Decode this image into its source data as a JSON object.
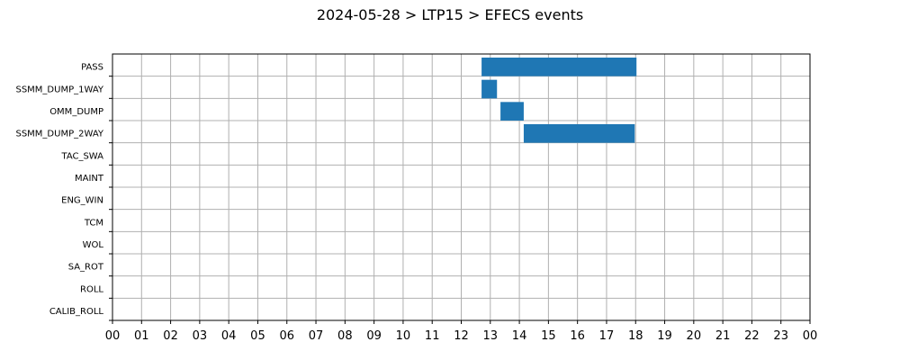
{
  "chart_data": {
    "type": "bar",
    "orientation": "horizontal-timeline",
    "title": "2024-05-28 > LTP15 > EFECS events",
    "xlabel": "",
    "ylabel": "",
    "x_unit": "hour of day",
    "xlim": [
      0,
      24
    ],
    "x_tick_labels": [
      "00",
      "01",
      "02",
      "03",
      "04",
      "05",
      "06",
      "07",
      "08",
      "09",
      "10",
      "11",
      "12",
      "13",
      "14",
      "15",
      "16",
      "17",
      "18",
      "19",
      "20",
      "21",
      "22",
      "23",
      "00"
    ],
    "categories": [
      "PASS",
      "SSMM_DUMP_1WAY",
      "OMM_DUMP",
      "SSMM_DUMP_2WAY",
      "TAC_SWA",
      "MAINT",
      "ENG_WIN",
      "TCM",
      "WOL",
      "SA_ROT",
      "ROLL",
      "CALIB_ROLL"
    ],
    "events": [
      {
        "category": "PASS",
        "start": 12.7,
        "end": 18.03
      },
      {
        "category": "SSMM_DUMP_1WAY",
        "start": 12.7,
        "end": 13.23
      },
      {
        "category": "OMM_DUMP",
        "start": 13.35,
        "end": 14.15
      },
      {
        "category": "SSMM_DUMP_2WAY",
        "start": 14.15,
        "end": 17.97
      }
    ],
    "grid": true,
    "bar_color": "#1f77b4"
  }
}
